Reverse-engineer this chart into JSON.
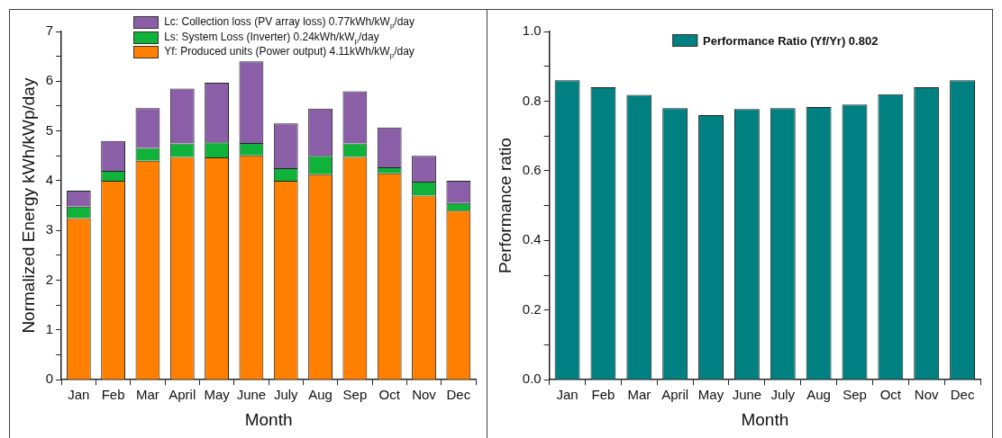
{
  "chart_data": [
    {
      "type": "bar",
      "stacked": true,
      "xlabel": "Month",
      "ylabel": "Normalized Energy kWh/kWp/day",
      "legend": "top left",
      "grid": false,
      "categories": [
        "Jan",
        "Feb",
        "Mar",
        "April",
        "May",
        "June",
        "July",
        "Aug",
        "Sep",
        "Oct",
        "Nov",
        "Dec"
      ],
      "ylim": [
        0,
        7
      ],
      "yticks": [
        0,
        {
          "value": 0.5,
          "label": null
        },
        1,
        {
          "value": 1.5,
          "label": null
        },
        2,
        {
          "value": 2.5,
          "label": null
        },
        3,
        {
          "value": 3.5,
          "label": null
        },
        4,
        {
          "value": 4.5,
          "label": null
        },
        5,
        {
          "value": 5.5,
          "label": null
        },
        6,
        {
          "value": 6.5,
          "label": null
        },
        7
      ],
      "series": [
        {
          "name": "Yf: Produced units (Power output) 4.11kWh/kW$_{p}$/day",
          "color": "#ff8000",
          "values": [
            3.25,
            4.0,
            4.4,
            4.48,
            4.47,
            4.51,
            4.0,
            4.13,
            4.48,
            4.15,
            3.7,
            3.4
          ]
        },
        {
          "name": "Ls: System Loss (Inverter) 0.24kWh/kW$_{p}$/day",
          "color": "#10b33a",
          "values": [
            0.23,
            0.2,
            0.26,
            0.27,
            0.3,
            0.25,
            0.25,
            0.37,
            0.27,
            0.12,
            0.28,
            0.15
          ]
        },
        {
          "name": "Lc: Collection loss (PV array loss) 0.77kWh/kW$_{p}$/day",
          "color": "#8a5fa8",
          "values": [
            0.32,
            0.6,
            0.8,
            1.1,
            1.2,
            1.64,
            0.9,
            0.95,
            1.05,
            0.8,
            0.52,
            0.45
          ]
        }
      ]
    },
    {
      "type": "bar",
      "xlabel": "Month",
      "ylabel": "Performance ratio",
      "legend": "top",
      "grid": false,
      "categories": [
        "Jan",
        "Feb",
        "Mar",
        "April",
        "May",
        "June",
        "July",
        "Aug",
        "Sep",
        "Oct",
        "Nov",
        "Dec"
      ],
      "ylim": [
        0,
        1
      ],
      "yticks": [
        {
          "value": 0,
          "label": "0.0"
        },
        {
          "value": 0.1,
          "label": null
        },
        0.2,
        {
          "value": 0.3,
          "label": null
        },
        0.4,
        {
          "value": 0.5,
          "label": null
        },
        0.6,
        {
          "value": 0.7,
          "label": null
        },
        0.8,
        {
          "value": 0.9,
          "label": null
        },
        {
          "value": 1,
          "label": "1.0"
        }
      ],
      "series": [
        {
          "name": "Performance Ratio (Yf/Yr) 0.802",
          "color": "#008080",
          "values": [
            0.86,
            0.84,
            0.818,
            0.78,
            0.76,
            0.777,
            0.78,
            0.783,
            0.79,
            0.82,
            0.84,
            0.86
          ]
        }
      ]
    }
  ]
}
